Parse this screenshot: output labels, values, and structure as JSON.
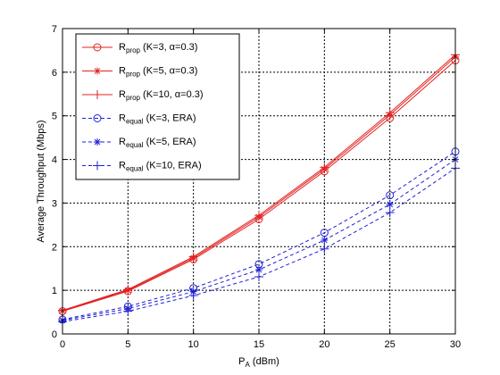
{
  "chart_data": {
    "type": "line",
    "title": "",
    "xlabel_main": "P",
    "xlabel_sub": "A",
    "xlabel_unit": " (dBm)",
    "ylabel": "Average Throughput (Mbps)",
    "xlim": [
      0,
      30
    ],
    "ylim": [
      0,
      7
    ],
    "xticks": [
      0,
      5,
      10,
      15,
      20,
      25,
      30
    ],
    "yticks": [
      0,
      1,
      2,
      3,
      4,
      5,
      6,
      7
    ],
    "grid": true,
    "legend_position": "top-left",
    "series": [
      {
        "main": "R",
        "sub": "prop",
        "rest": " (K=3, α=0.3)",
        "color": "#e32222",
        "dash": "solid",
        "marker": "circle",
        "x": [
          0,
          5,
          10,
          15,
          20,
          25,
          30
        ],
        "y": [
          0.52,
          0.98,
          1.71,
          2.63,
          3.73,
          4.95,
          6.27
        ]
      },
      {
        "main": "R",
        "sub": "prop",
        "rest": " (K=5, α=0.3)",
        "color": "#e32222",
        "dash": "solid",
        "marker": "star",
        "x": [
          0,
          5,
          10,
          15,
          20,
          25,
          30
        ],
        "y": [
          0.53,
          1.0,
          1.74,
          2.68,
          3.78,
          5.02,
          6.35
        ]
      },
      {
        "main": "R",
        "sub": "prop",
        "rest": " (K=10, α=0.3)",
        "color": "#e32222",
        "dash": "solid",
        "marker": "plus",
        "x": [
          0,
          5,
          10,
          15,
          20,
          25,
          30
        ],
        "y": [
          0.54,
          1.02,
          1.77,
          2.72,
          3.82,
          5.07,
          6.4
        ]
      },
      {
        "main": "R",
        "sub": "equal",
        "rest": " (K=3, ERA)",
        "color": "#1f1fd6",
        "dash": "dashed",
        "marker": "circle",
        "x": [
          0,
          5,
          10,
          15,
          20,
          25,
          30
        ],
        "y": [
          0.33,
          0.63,
          1.05,
          1.6,
          2.32,
          3.18,
          4.18
        ]
      },
      {
        "main": "R",
        "sub": "equal",
        "rest": " (K=5, ERA)",
        "color": "#1f1fd6",
        "dash": "dashed",
        "marker": "star",
        "x": [
          0,
          5,
          10,
          15,
          20,
          25,
          30
        ],
        "y": [
          0.31,
          0.58,
          0.97,
          1.47,
          2.15,
          2.97,
          4.0
        ]
      },
      {
        "main": "R",
        "sub": "equal",
        "rest": " (K=10, ERA)",
        "color": "#1f1fd6",
        "dash": "dashed",
        "marker": "plus",
        "x": [
          0,
          5,
          10,
          15,
          20,
          25,
          30
        ],
        "y": [
          0.28,
          0.52,
          0.88,
          1.31,
          1.95,
          2.78,
          3.8
        ]
      }
    ]
  }
}
